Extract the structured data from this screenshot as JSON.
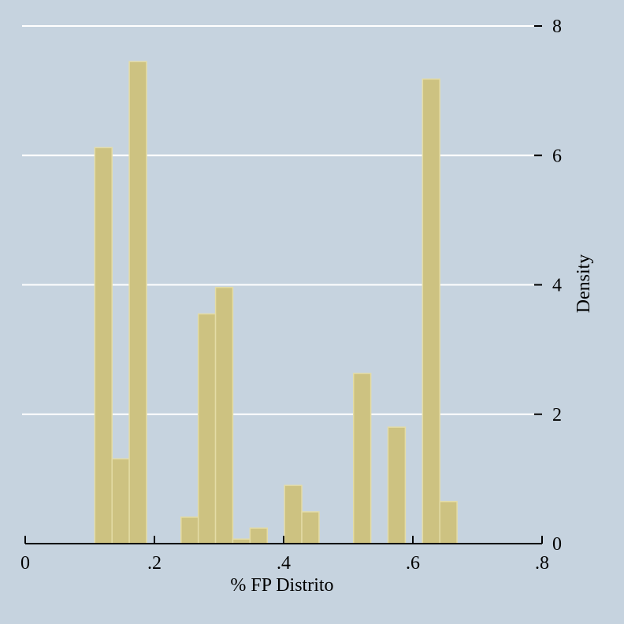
{
  "chart_data": {
    "type": "bar",
    "title": "",
    "xlabel": "% FP Distrito",
    "ylabel": "Density",
    "xlim": [
      0,
      0.8
    ],
    "ylim": [
      0,
      8
    ],
    "x_ticks": [
      0,
      0.2,
      0.4,
      0.6,
      0.8
    ],
    "x_tick_labels": [
      "0",
      ".2",
      ".4",
      ".6",
      ".8"
    ],
    "y_ticks": [
      0,
      2,
      4,
      6,
      8
    ],
    "y_tick_labels": [
      "0",
      "2",
      "4",
      "6",
      "8"
    ],
    "y_axis_side": "right",
    "grid": true,
    "bin_width": 0.0267,
    "bins": [
      {
        "x_start": 0.1077,
        "density": 6.12
      },
      {
        "x_start": 0.1344,
        "density": 1.31
      },
      {
        "x_start": 0.1611,
        "density": 7.45
      },
      {
        "x_start": 0.2412,
        "density": 0.41
      },
      {
        "x_start": 0.2679,
        "density": 3.55
      },
      {
        "x_start": 0.2946,
        "density": 3.96
      },
      {
        "x_start": 0.3213,
        "density": 0.07
      },
      {
        "x_start": 0.348,
        "density": 0.24
      },
      {
        "x_start": 0.4014,
        "density": 0.9
      },
      {
        "x_start": 0.4281,
        "density": 0.49
      },
      {
        "x_start": 0.5082,
        "density": 2.63
      },
      {
        "x_start": 0.5616,
        "density": 1.8
      },
      {
        "x_start": 0.615,
        "density": 7.18
      },
      {
        "x_start": 0.6417,
        "density": 0.65
      }
    ],
    "colors": {
      "background": "#c6d3df",
      "bar_fill": "#cdc281",
      "bar_outline": "#e4dca6",
      "grid": "#ffffff"
    }
  }
}
